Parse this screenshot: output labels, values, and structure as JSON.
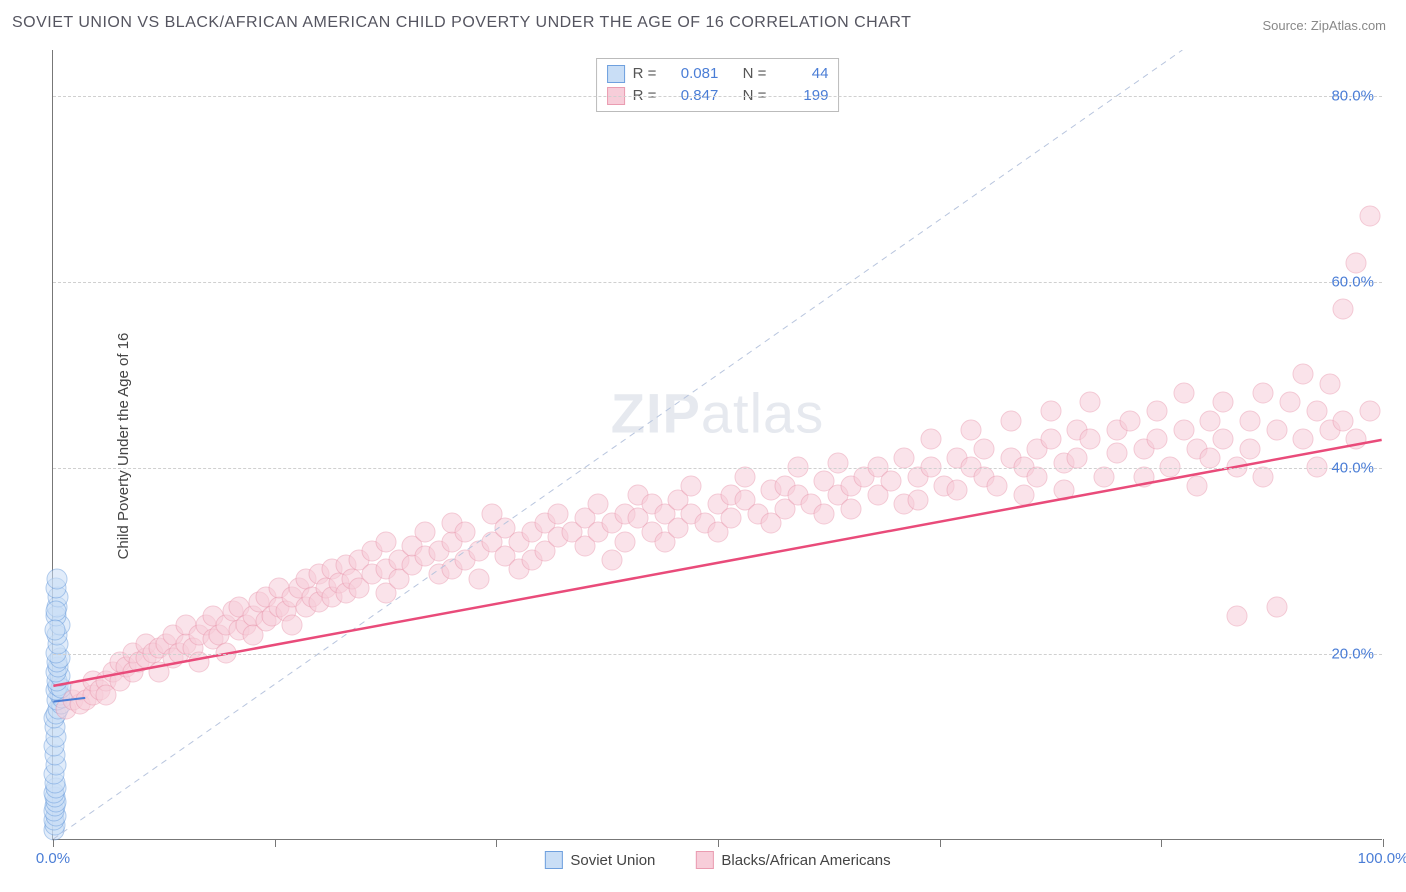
{
  "title": "SOVIET UNION VS BLACK/AFRICAN AMERICAN CHILD POVERTY UNDER THE AGE OF 16 CORRELATION CHART",
  "source": "Source: ZipAtlas.com",
  "yaxis_label": "Child Poverty Under the Age of 16",
  "watermark_a": "ZIP",
  "watermark_b": "atlas",
  "chart": {
    "type": "scatter",
    "xlim": [
      0,
      100
    ],
    "ylim": [
      0,
      85
    ],
    "x_ticks": [
      0,
      16.67,
      33.33,
      50,
      66.67,
      83.33,
      100
    ],
    "x_tick_labels": {
      "0": "0.0%",
      "100": "100.0%"
    },
    "y_gridlines": [
      20,
      40,
      60,
      80
    ],
    "y_tick_labels": {
      "20": "20.0%",
      "40": "40.0%",
      "60": "60.0%",
      "80": "80.0%"
    },
    "grid_color": "#d8d8d8",
    "axis_color": "#777777",
    "tick_label_color": "#4a7dd6",
    "background_color": "#ffffff",
    "identity_line": {
      "color": "#b8c5de",
      "dash": "6,5",
      "width": 1
    },
    "marker_radius": 10.5,
    "marker_stroke_width": 1
  },
  "series": [
    {
      "key": "soviet",
      "label": "Soviet Union",
      "fill": "#c9def6",
      "stroke": "#6fa0de",
      "fill_opacity": 0.55,
      "R": "0.081",
      "N": "44",
      "trend": {
        "x1": 0,
        "y1": 14.8,
        "x2": 2.4,
        "y2": 15.2,
        "color": "#4a7dd6",
        "width": 2
      },
      "points": [
        [
          0.1,
          1
        ],
        [
          0.15,
          1.5
        ],
        [
          0.1,
          2
        ],
        [
          0.2,
          2.5
        ],
        [
          0.1,
          3
        ],
        [
          0.15,
          3.5
        ],
        [
          0.2,
          4
        ],
        [
          0.15,
          4.5
        ],
        [
          0.1,
          5
        ],
        [
          0.2,
          5.5
        ],
        [
          0.15,
          6
        ],
        [
          0.1,
          7
        ],
        [
          0.2,
          8
        ],
        [
          0.15,
          9
        ],
        [
          0.1,
          10
        ],
        [
          0.2,
          11
        ],
        [
          0.15,
          12
        ],
        [
          0.1,
          13
        ],
        [
          0.2,
          13.5
        ],
        [
          0.4,
          14
        ],
        [
          0.6,
          14.5
        ],
        [
          0.3,
          15
        ],
        [
          0.5,
          15.5
        ],
        [
          0.7,
          15.2
        ],
        [
          0.2,
          16
        ],
        [
          0.4,
          16.5
        ],
        [
          0.6,
          16.2
        ],
        [
          0.3,
          17
        ],
        [
          0.5,
          17.5
        ],
        [
          0.2,
          18
        ],
        [
          0.4,
          18.5
        ],
        [
          0.3,
          19
        ],
        [
          0.5,
          19.5
        ],
        [
          0.2,
          20
        ],
        [
          0.4,
          21
        ],
        [
          0.3,
          22
        ],
        [
          0.5,
          23
        ],
        [
          0.2,
          24
        ],
        [
          0.3,
          25
        ],
        [
          0.4,
          26
        ],
        [
          0.2,
          27
        ],
        [
          0.3,
          28
        ],
        [
          0.2,
          24.5
        ],
        [
          0.15,
          22.5
        ]
      ]
    },
    {
      "key": "black",
      "label": "Blacks/African Americans",
      "fill": "#f7cdd9",
      "stroke": "#ea9cb1",
      "fill_opacity": 0.55,
      "R": "0.847",
      "N": "199",
      "trend": {
        "x1": 0,
        "y1": 16.5,
        "x2": 100,
        "y2": 43,
        "color": "#e94b7a",
        "width": 2.5
      },
      "points": [
        [
          1,
          14
        ],
        [
          1.5,
          15
        ],
        [
          2,
          14.5
        ],
        [
          2,
          16
        ],
        [
          2.5,
          15
        ],
        [
          3,
          15.5
        ],
        [
          3,
          17
        ],
        [
          3.5,
          16
        ],
        [
          4,
          17
        ],
        [
          4,
          15.5
        ],
        [
          4.5,
          18
        ],
        [
          5,
          17
        ],
        [
          5,
          19
        ],
        [
          5.5,
          18.5
        ],
        [
          6,
          18
        ],
        [
          6,
          20
        ],
        [
          6.5,
          19
        ],
        [
          7,
          19.5
        ],
        [
          7,
          21
        ],
        [
          7.5,
          20
        ],
        [
          8,
          18
        ],
        [
          8,
          20.5
        ],
        [
          8.5,
          21
        ],
        [
          9,
          19.5
        ],
        [
          9,
          22
        ],
        [
          9.5,
          20
        ],
        [
          10,
          21
        ],
        [
          10,
          23
        ],
        [
          10.5,
          20.5
        ],
        [
          11,
          22
        ],
        [
          11,
          19
        ],
        [
          11.5,
          23
        ],
        [
          12,
          21.5
        ],
        [
          12,
          24
        ],
        [
          12.5,
          22
        ],
        [
          13,
          23
        ],
        [
          13,
          20
        ],
        [
          13.5,
          24.5
        ],
        [
          14,
          22.5
        ],
        [
          14,
          25
        ],
        [
          14.5,
          23
        ],
        [
          15,
          24
        ],
        [
          15,
          22
        ],
        [
          15.5,
          25.5
        ],
        [
          16,
          23.5
        ],
        [
          16,
          26
        ],
        [
          16.5,
          24
        ],
        [
          17,
          25
        ],
        [
          17,
          27
        ],
        [
          17.5,
          24.5
        ],
        [
          18,
          26
        ],
        [
          18,
          23
        ],
        [
          18.5,
          27
        ],
        [
          19,
          25
        ],
        [
          19,
          28
        ],
        [
          19.5,
          26
        ],
        [
          20,
          25.5
        ],
        [
          20,
          28.5
        ],
        [
          20.5,
          27
        ],
        [
          21,
          26
        ],
        [
          21,
          29
        ],
        [
          21.5,
          27.5
        ],
        [
          22,
          26.5
        ],
        [
          22,
          29.5
        ],
        [
          22.5,
          28
        ],
        [
          23,
          30
        ],
        [
          23,
          27
        ],
        [
          24,
          28.5
        ],
        [
          24,
          31
        ],
        [
          25,
          29
        ],
        [
          25,
          26.5
        ],
        [
          25,
          32
        ],
        [
          26,
          30
        ],
        [
          26,
          28
        ],
        [
          27,
          29.5
        ],
        [
          27,
          31.5
        ],
        [
          28,
          30.5
        ],
        [
          28,
          33
        ],
        [
          29,
          31
        ],
        [
          29,
          28.5
        ],
        [
          30,
          32
        ],
        [
          30,
          29
        ],
        [
          30,
          34
        ],
        [
          31,
          30
        ],
        [
          31,
          33
        ],
        [
          32,
          31
        ],
        [
          32,
          28
        ],
        [
          33,
          32
        ],
        [
          33,
          35
        ],
        [
          34,
          30.5
        ],
        [
          34,
          33.5
        ],
        [
          35,
          32
        ],
        [
          35,
          29
        ],
        [
          36,
          33
        ],
        [
          36,
          30
        ],
        [
          37,
          34
        ],
        [
          37,
          31
        ],
        [
          38,
          32.5
        ],
        [
          38,
          35
        ],
        [
          39,
          33
        ],
        [
          40,
          34.5
        ],
        [
          40,
          31.5
        ],
        [
          41,
          33
        ],
        [
          41,
          36
        ],
        [
          42,
          34
        ],
        [
          42,
          30
        ],
        [
          43,
          35
        ],
        [
          43,
          32
        ],
        [
          44,
          34.5
        ],
        [
          44,
          37
        ],
        [
          45,
          33
        ],
        [
          45,
          36
        ],
        [
          46,
          35
        ],
        [
          46,
          32
        ],
        [
          47,
          36.5
        ],
        [
          47,
          33.5
        ],
        [
          48,
          35
        ],
        [
          48,
          38
        ],
        [
          49,
          34
        ],
        [
          50,
          36
        ],
        [
          50,
          33
        ],
        [
          51,
          37
        ],
        [
          51,
          34.5
        ],
        [
          52,
          36.5
        ],
        [
          52,
          39
        ],
        [
          53,
          35
        ],
        [
          54,
          37.5
        ],
        [
          54,
          34
        ],
        [
          55,
          38
        ],
        [
          55,
          35.5
        ],
        [
          56,
          37
        ],
        [
          56,
          40
        ],
        [
          57,
          36
        ],
        [
          58,
          38.5
        ],
        [
          58,
          35
        ],
        [
          59,
          37
        ],
        [
          59,
          40.5
        ],
        [
          60,
          38
        ],
        [
          60,
          35.5
        ],
        [
          61,
          39
        ],
        [
          62,
          37
        ],
        [
          62,
          40
        ],
        [
          63,
          38.5
        ],
        [
          64,
          36
        ],
        [
          64,
          41
        ],
        [
          65,
          39
        ],
        [
          65,
          36.5
        ],
        [
          66,
          40
        ],
        [
          66,
          43
        ],
        [
          67,
          38
        ],
        [
          68,
          41
        ],
        [
          68,
          37.5
        ],
        [
          69,
          40
        ],
        [
          69,
          44
        ],
        [
          70,
          39
        ],
        [
          70,
          42
        ],
        [
          71,
          38
        ],
        [
          72,
          41
        ],
        [
          72,
          45
        ],
        [
          73,
          40
        ],
        [
          73,
          37
        ],
        [
          74,
          42
        ],
        [
          74,
          39
        ],
        [
          75,
          43
        ],
        [
          75,
          46
        ],
        [
          76,
          40.5
        ],
        [
          76,
          37.5
        ],
        [
          77,
          44
        ],
        [
          77,
          41
        ],
        [
          78,
          43
        ],
        [
          78,
          47
        ],
        [
          79,
          39
        ],
        [
          80,
          44
        ],
        [
          80,
          41.5
        ],
        [
          81,
          45
        ],
        [
          82,
          42
        ],
        [
          82,
          39
        ],
        [
          83,
          46
        ],
        [
          83,
          43
        ],
        [
          84,
          40
        ],
        [
          85,
          44
        ],
        [
          85,
          48
        ],
        [
          86,
          42
        ],
        [
          86,
          38
        ],
        [
          87,
          45
        ],
        [
          87,
          41
        ],
        [
          88,
          47
        ],
        [
          88,
          43
        ],
        [
          89,
          40
        ],
        [
          89,
          24
        ],
        [
          90,
          45
        ],
        [
          90,
          42
        ],
        [
          91,
          48
        ],
        [
          91,
          39
        ],
        [
          92,
          44
        ],
        [
          92,
          25
        ],
        [
          93,
          47
        ],
        [
          94,
          43
        ],
        [
          94,
          50
        ],
        [
          95,
          46
        ],
        [
          95,
          40
        ],
        [
          96,
          49
        ],
        [
          96,
          44
        ],
        [
          97,
          57
        ],
        [
          97,
          45
        ],
        [
          98,
          62
        ],
        [
          98,
          43
        ],
        [
          99,
          67
        ],
        [
          99,
          46
        ]
      ]
    }
  ],
  "legend_top": {
    "r_label": "R =",
    "n_label": "N ="
  },
  "legend_bottom": [
    {
      "series": "soviet"
    },
    {
      "series": "black"
    }
  ]
}
